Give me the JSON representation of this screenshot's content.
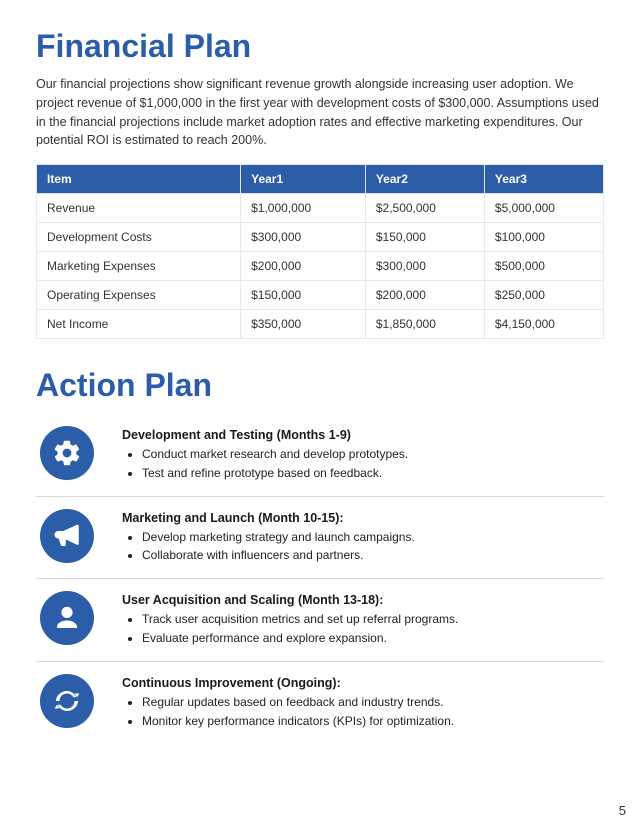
{
  "colors": {
    "accent": "#2c5da8",
    "header_bg": "#2c5da8",
    "header_text": "#ffffff",
    "border": "#e8e8e8",
    "divider": "#d8d8d8",
    "text": "#222222",
    "background": "#ffffff"
  },
  "financial": {
    "title": "Financial Plan",
    "intro": "Our financial projections show significant revenue growth alongside increasing user adoption. We project revenue of $1,000,000 in the first year with development costs of $300,000. Assumptions used in the financial projections include market adoption rates and effective marketing expenditures. Our potential ROI is estimated to reach 200%.",
    "table": {
      "columns": [
        "Item",
        "Year1",
        "Year2",
        "Year3"
      ],
      "col_widths": [
        "36%",
        "22%",
        "21%",
        "21%"
      ],
      "rows": [
        [
          "Revenue",
          "$1,000,000",
          "$2,500,000",
          "$5,000,000"
        ],
        [
          "Development Costs",
          "$300,000",
          "$150,000",
          "$100,000"
        ],
        [
          "Marketing Expenses",
          "$200,000",
          "$300,000",
          "$500,000"
        ],
        [
          "Operating Expenses",
          "$150,000",
          "$200,000",
          "$250,000"
        ],
        [
          "Net Income",
          "$350,000",
          "$1,850,000",
          "$4,150,000"
        ]
      ]
    }
  },
  "action": {
    "title": "Action Plan",
    "items": [
      {
        "icon": "gear",
        "heading": "Development and Testing (Months 1-9)",
        "bullets": [
          "Conduct market research and develop prototypes.",
          "Test and refine prototype based on feedback."
        ]
      },
      {
        "icon": "megaphone",
        "heading": "Marketing and Launch (Month 10-15):",
        "bullets": [
          "Develop marketing strategy and launch campaigns.",
          "Collaborate with influencers and partners."
        ]
      },
      {
        "icon": "user",
        "heading": "User Acquisition and Scaling (Month 13-18):",
        "bullets": [
          "Track user acquisition metrics and set up referral programs.",
          "Evaluate performance and explore expansion."
        ]
      },
      {
        "icon": "cycle",
        "heading": "Continuous Improvement (Ongoing):",
        "bullets": [
          "Regular updates based on feedback and industry trends.",
          "Monitor key performance indicators (KPIs) for optimization."
        ]
      }
    ]
  },
  "page_number": "5"
}
